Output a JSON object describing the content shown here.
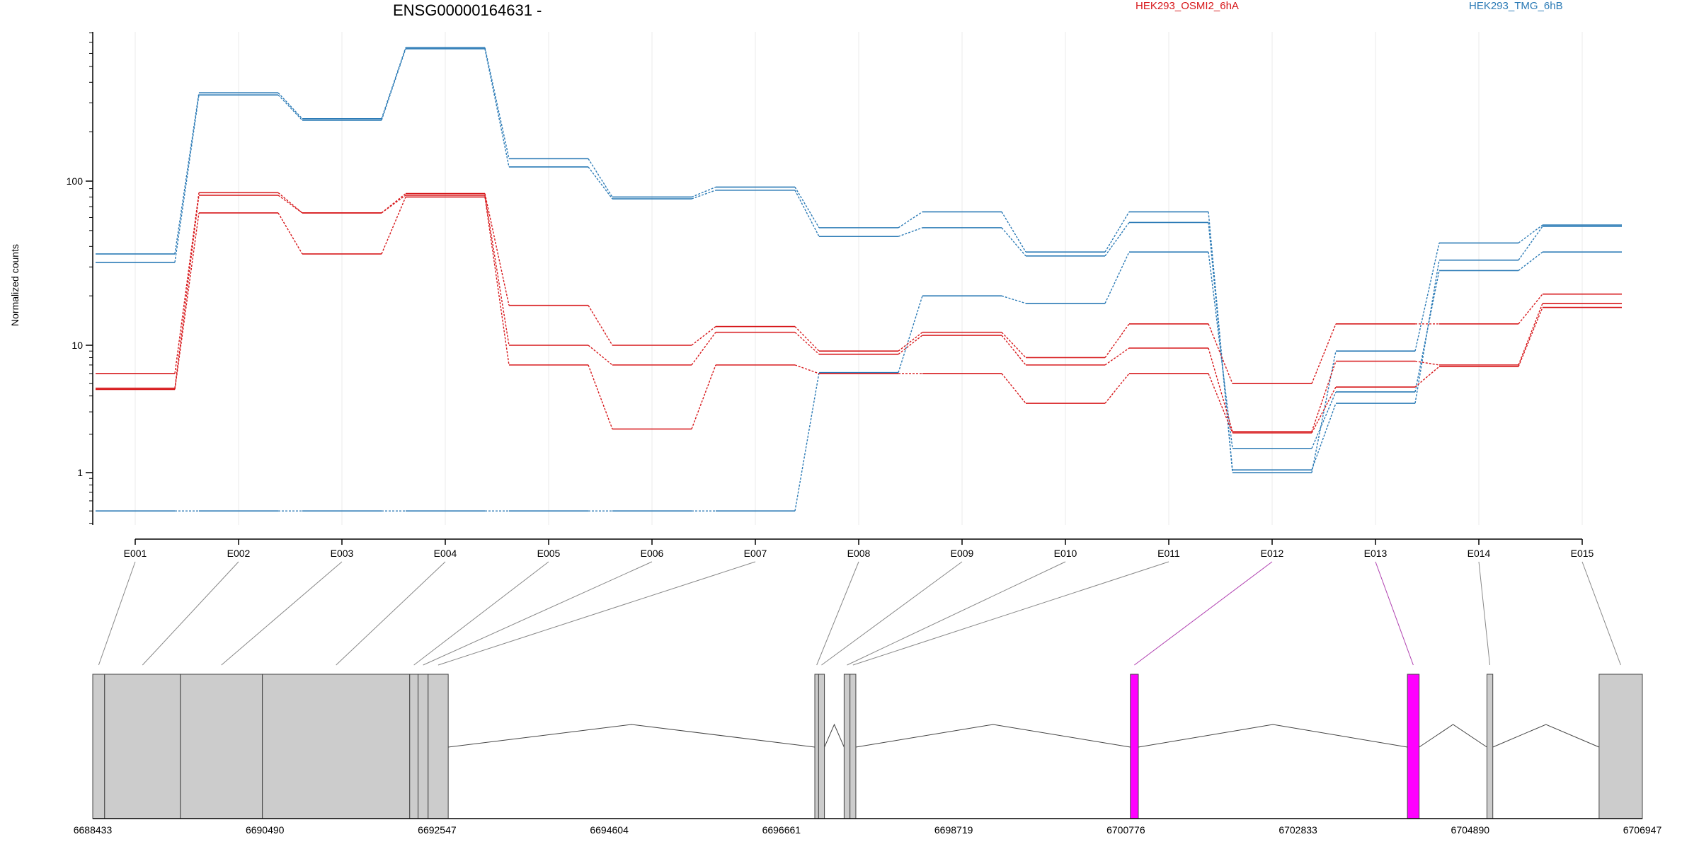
{
  "chart_data": {
    "type": "line",
    "title": "ENSG00000164631 -",
    "ylabel": "Normalized counts",
    "yscale": "log",
    "ytick_labels": [
      "1",
      "10",
      "100"
    ],
    "ytick_values": [
      1,
      10,
      100
    ],
    "categories": [
      "E001",
      "E002",
      "E003",
      "E004",
      "E005",
      "E006",
      "E007",
      "E008",
      "E009",
      "E010",
      "E011",
      "E012",
      "E013",
      "E014",
      "E015"
    ],
    "legend": [
      {
        "name": "HEK293_OSMI2_6hA",
        "color": "#D7191C"
      },
      {
        "name": "HEK293_TMG_6hB",
        "color": "#2C7BB6"
      }
    ],
    "series": [
      {
        "group": "HEK293_TMG_6hB",
        "color": "#2C7BB6",
        "values": [
          36,
          345,
          240,
          650,
          137,
          80,
          92,
          52,
          65,
          37,
          65,
          1.0,
          9,
          42,
          54
        ]
      },
      {
        "group": "HEK293_TMG_6hB",
        "color": "#2C7BB6",
        "values": [
          32,
          335,
          235,
          640,
          122,
          78,
          88,
          46,
          52,
          35,
          56,
          1.05,
          3.5,
          33,
          53
        ]
      },
      {
        "group": "HEK293_TMG_6hB",
        "color": "#2C7BB6",
        "values": [
          0.5,
          0.5,
          0.5,
          0.5,
          0.5,
          0.5,
          0.5,
          6.1,
          20,
          18,
          37,
          1.55,
          4.3,
          28.5,
          37
        ]
      },
      {
        "group": "HEK293_OSMI2_6hA",
        "color": "#D7191C",
        "values": [
          6,
          85,
          64,
          84,
          17.5,
          10,
          13,
          9,
          12,
          8,
          13.5,
          5,
          13.5,
          13.5,
          20.5
        ]
      },
      {
        "group": "HEK293_OSMI2_6hA",
        "color": "#D7191C",
        "values": [
          4.6,
          82,
          64,
          82,
          10,
          7,
          12,
          8.5,
          11.5,
          7,
          9.5,
          2.1,
          7.5,
          7,
          18
        ]
      },
      {
        "group": "HEK293_OSMI2_6hA",
        "color": "#D7191C",
        "values": [
          4.5,
          64,
          36,
          80,
          7,
          2.2,
          7,
          6,
          6,
          3.5,
          6,
          2.05,
          4.7,
          6.8,
          17
        ]
      }
    ],
    "genomic_axis": {
      "tick_labels": [
        "6688433",
        "6690490",
        "6692547",
        "6694604",
        "6696661",
        "6698719",
        "6700776",
        "6702833",
        "6704890",
        "6706947"
      ],
      "tick_values": [
        6688433,
        6690490,
        6692547,
        6694604,
        6696661,
        6698719,
        6700776,
        6702833,
        6704890,
        6706947
      ]
    },
    "exons": [
      {
        "id": "E001",
        "start": 6688433,
        "end": 6688575,
        "color": "#CCCCCC"
      },
      {
        "id": "E002",
        "start": 6688575,
        "end": 6689480,
        "color": "#CCCCCC"
      },
      {
        "id": "E003",
        "start": 6689480,
        "end": 6690460,
        "color": "#CCCCCC"
      },
      {
        "id": "E004",
        "start": 6690460,
        "end": 6692220,
        "color": "#CCCCCC"
      },
      {
        "id": "E005",
        "start": 6692220,
        "end": 6692320,
        "color": "#CCCCCC"
      },
      {
        "id": "E006",
        "start": 6692320,
        "end": 6692440,
        "color": "#CCCCCC"
      },
      {
        "id": "E007",
        "start": 6692440,
        "end": 6692680,
        "color": "#CCCCCC"
      },
      {
        "id": "E008",
        "start": 6697060,
        "end": 6697105,
        "color": "#CCCCCC"
      },
      {
        "id": "E009",
        "start": 6697105,
        "end": 6697175,
        "color": "#CCCCCC"
      },
      {
        "id": "E010",
        "start": 6697410,
        "end": 6697480,
        "color": "#CCCCCC"
      },
      {
        "id": "E011",
        "start": 6697480,
        "end": 6697550,
        "color": "#CCCCCC"
      },
      {
        "id": "E012",
        "start": 6700830,
        "end": 6700925,
        "color": "#FF00FF"
      },
      {
        "id": "E013",
        "start": 6704140,
        "end": 6704280,
        "color": "#FF00FF"
      },
      {
        "id": "E014",
        "start": 6705090,
        "end": 6705160,
        "color": "#CCCCCC"
      },
      {
        "id": "E015",
        "start": 6706430,
        "end": 6706947,
        "color": "#CCCCCC"
      }
    ],
    "grid": true
  }
}
